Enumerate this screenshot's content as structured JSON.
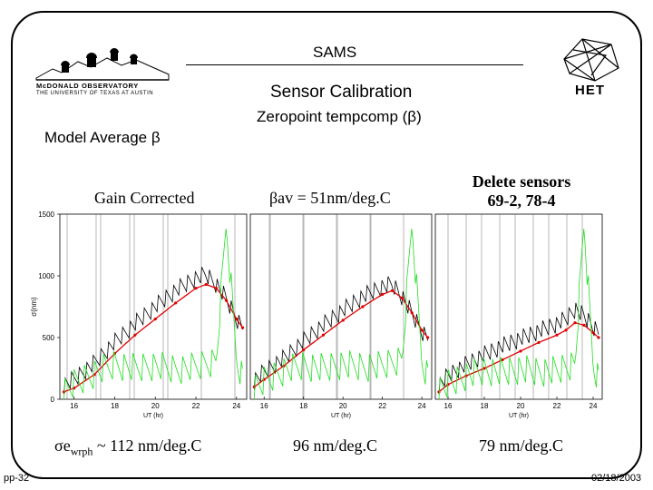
{
  "slide": {
    "title": "SAMS",
    "subtitle": "Sensor Calibration",
    "subheading": "Zeropoint tempcomp (β)",
    "model_label": "Model Average β",
    "panel_labels": {
      "left": "Gain Corrected",
      "center": "βav = 51nm/deg.C",
      "right_line1": "Delete sensors",
      "right_line2": "69-2, 78-4"
    },
    "bottom_labels": {
      "left_prefix": "σe",
      "left_sub": "wrph",
      "left_suffix": " ~ 112 nm/deg.C",
      "center": "96 nm/deg.C",
      "right": "79 nm/deg.C"
    },
    "page_number": "pp-32",
    "date": "02/18/2003"
  },
  "logos": {
    "mcdonald_line1": "McDONALD OBSERVATORY",
    "mcdonald_line2": "THE UNIVERSITY OF TEXAS AT AUSTIN",
    "het": "HET"
  },
  "chart_data": {
    "type": "line",
    "ylabel": "σ(nm)",
    "xlabel": "UT (hr)",
    "ylim": [
      0,
      1500
    ],
    "yticks": [
      "0",
      "500",
      "1000",
      "1500"
    ],
    "xticks": [
      "16",
      "18",
      "20",
      "22",
      "24"
    ],
    "panels": [
      {
        "x": [
          15.5,
          16,
          17,
          18,
          19,
          20,
          21,
          22,
          22.5,
          23,
          23.5,
          24,
          24.3
        ],
        "series": [
          {
            "color": "#000000",
            "values": [
              80,
              130,
              260,
              430,
              580,
              720,
              850,
              950,
              980,
              900,
              780,
              620,
              560
            ]
          },
          {
            "color": "#e00000",
            "values": [
              60,
              90,
              200,
              370,
              520,
              650,
              780,
              900,
              930,
              900,
              800,
              650,
              580
            ]
          },
          {
            "color": "#22dd22",
            "values": [
              30,
              90,
              180,
              250,
              220,
              240,
              210,
              230,
              260,
              280,
              1400,
              300,
              150
            ]
          }
        ]
      },
      {
        "x": [
          15.5,
          16,
          17,
          18,
          19,
          20,
          21,
          22,
          22.5,
          23,
          23.5,
          24,
          24.3
        ],
        "series": [
          {
            "color": "#000000",
            "values": [
              120,
              190,
              300,
              440,
              570,
              690,
              800,
              880,
              900,
              800,
              660,
              520,
              470
            ]
          },
          {
            "color": "#e00000",
            "values": [
              100,
              160,
              270,
              400,
              520,
              640,
              750,
              850,
              880,
              820,
              700,
              560,
              500
            ]
          },
          {
            "color": "#22dd22",
            "values": [
              60,
              110,
              200,
              240,
              220,
              250,
              230,
              240,
              270,
              300,
              1400,
              280,
              160
            ]
          }
        ]
      },
      {
        "x": [
          15.5,
          16,
          17,
          18,
          19,
          20,
          21,
          22,
          22.5,
          23,
          23.5,
          24,
          24.3
        ],
        "series": [
          {
            "color": "#000000",
            "values": [
              80,
              160,
              250,
              330,
              400,
              460,
              520,
              580,
              620,
              700,
              640,
              560,
              520
            ]
          },
          {
            "color": "#e00000",
            "values": [
              60,
              120,
              190,
              250,
              320,
              390,
              460,
              520,
              560,
              620,
              600,
              540,
              500
            ]
          },
          {
            "color": "#22dd22",
            "values": [
              40,
              90,
              160,
              200,
              190,
              210,
              190,
              200,
              230,
              260,
              1400,
              250,
              140
            ]
          }
        ]
      }
    ]
  }
}
